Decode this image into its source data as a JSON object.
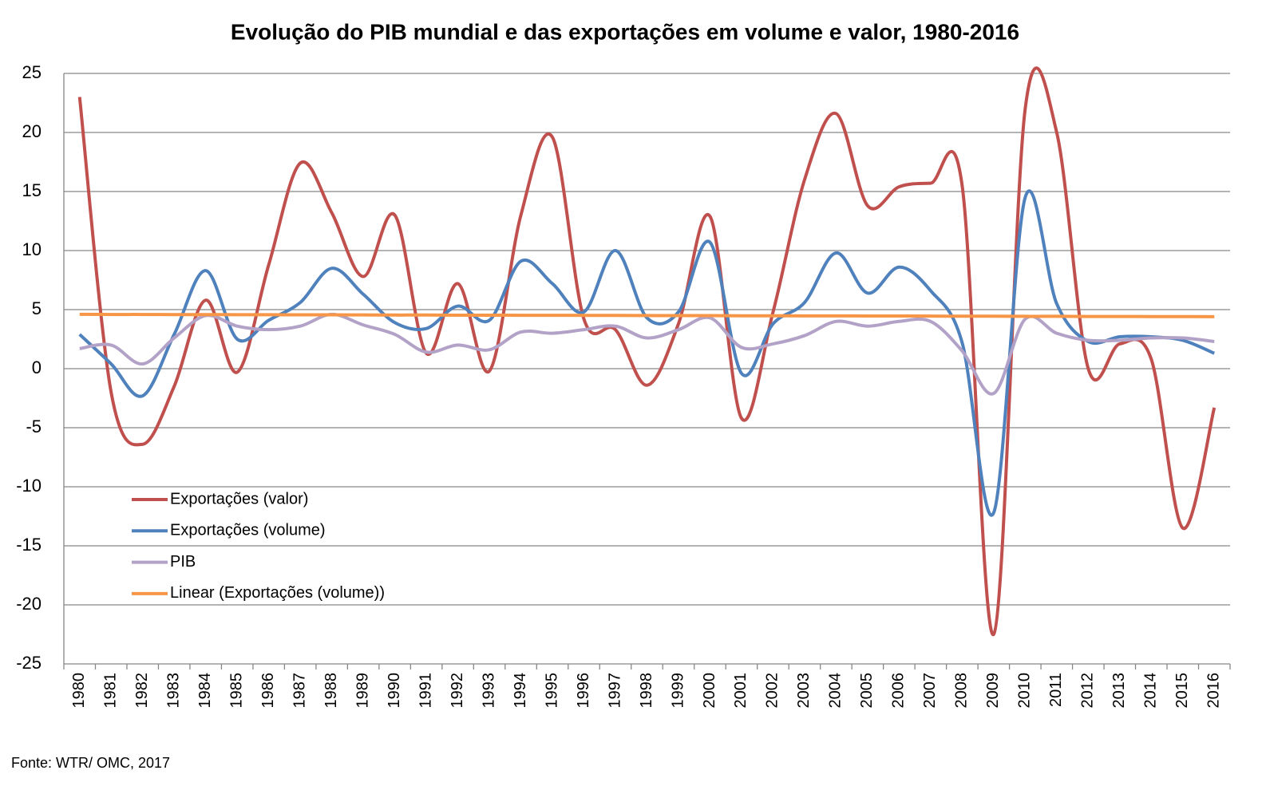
{
  "chart_data": {
    "type": "line",
    "title": "Evolução do PIB mundial e das exportações em volume e valor, 1980-2016",
    "source": "Fonte: WTR/ OMC, 2017",
    "categories": [
      "1980",
      "1981",
      "1982",
      "1983",
      "1984",
      "1985",
      "1986",
      "1987",
      "1988",
      "1989",
      "1990",
      "1991",
      "1992",
      "1993",
      "1994",
      "1995",
      "1996",
      "1997",
      "1998",
      "1999",
      "2000",
      "2001",
      "2002",
      "2003",
      "2004",
      "2005",
      "2006",
      "2007",
      "2008",
      "2009",
      "2010",
      "2011",
      "2012",
      "2013",
      "2014",
      "2015",
      "2016"
    ],
    "series": [
      {
        "name": "Exportações (valor)",
        "color": "#c0504d",
        "values": [
          23,
          -2,
          -6.4,
          -1.5,
          5.8,
          -0.3,
          8.8,
          17.4,
          13.2,
          7.8,
          13,
          1.3,
          7.2,
          -0.2,
          13,
          19.6,
          4.2,
          3.3,
          -1.4,
          3.8,
          12.9,
          -4.2,
          4.8,
          16,
          21.6,
          13.8,
          15.4,
          15.7,
          15.5,
          -22.5,
          22,
          20,
          0,
          2.1,
          0.8,
          -13.5,
          -3.3
        ]
      },
      {
        "name": "Exportações (volume)",
        "color": "#4f81bd",
        "values": [
          2.9,
          0.4,
          -2.3,
          2.9,
          8.3,
          2.5,
          4.1,
          5.6,
          8.5,
          6.3,
          3.9,
          3.4,
          5.3,
          4.1,
          9.1,
          7.2,
          4.8,
          10,
          4.3,
          4.8,
          10.7,
          -0.4,
          3.8,
          5.6,
          9.8,
          6.4,
          8.6,
          6.6,
          2.2,
          -12.2,
          14.5,
          5.5,
          2.3,
          2.7,
          2.7,
          2.4,
          1.3
        ]
      },
      {
        "name": "PIB",
        "color": "#b3a2c7",
        "values": [
          1.7,
          2,
          0.4,
          2.6,
          4.5,
          3.6,
          3.3,
          3.6,
          4.6,
          3.7,
          2.9,
          1.4,
          2,
          1.6,
          3.1,
          3,
          3.3,
          3.6,
          2.6,
          3.3,
          4.3,
          1.8,
          2.1,
          2.8,
          4,
          3.6,
          4,
          4,
          1.5,
          -2.1,
          4.2,
          3,
          2.4,
          2.4,
          2.6,
          2.6,
          2.3
        ]
      },
      {
        "name": "Linear (Exportações (volume))",
        "color": "#f79646",
        "values": [
          4.6,
          4.59,
          4.59,
          4.58,
          4.58,
          4.57,
          4.57,
          4.56,
          4.56,
          4.55,
          4.54,
          4.54,
          4.53,
          4.53,
          4.52,
          4.52,
          4.51,
          4.51,
          4.5,
          4.49,
          4.49,
          4.48,
          4.48,
          4.47,
          4.47,
          4.46,
          4.46,
          4.45,
          4.44,
          4.44,
          4.43,
          4.43,
          4.42,
          4.42,
          4.41,
          4.41,
          4.4
        ]
      }
    ],
    "ylim": [
      -25,
      25
    ],
    "yticks": [
      -25,
      -20,
      -15,
      -10,
      -5,
      0,
      5,
      10,
      15,
      20,
      25
    ],
    "grid": true,
    "smooth": true
  }
}
